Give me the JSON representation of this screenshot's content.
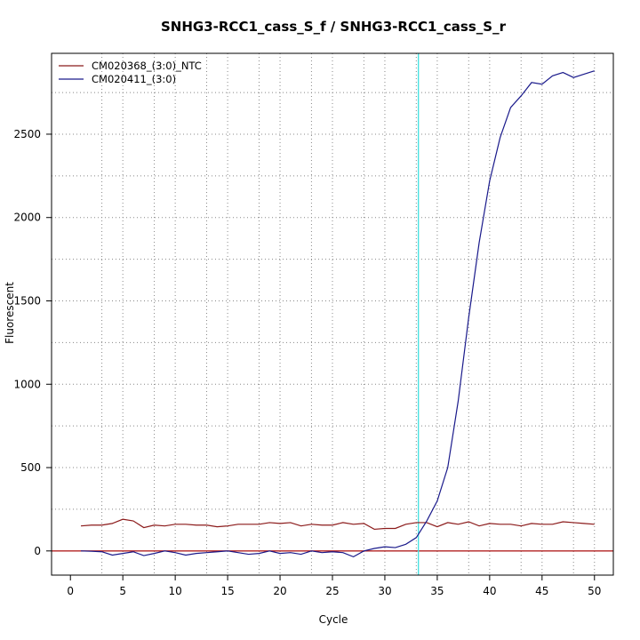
{
  "chart_data": {
    "type": "line",
    "title": "SNHG3-RCC1_cass_S_f / SNHG3-RCC1_cass_S_r",
    "xlabel": "Cycle",
    "ylabel": "Fluorescent",
    "xlim": [
      -1.8,
      51.8
    ],
    "ylim": [
      -145,
      2985
    ],
    "x_ticks": [
      0,
      5,
      10,
      15,
      20,
      25,
      30,
      35,
      40,
      45,
      50
    ],
    "y_ticks": [
      0,
      500,
      1000,
      1500,
      2000,
      2500
    ],
    "grid": "dotted",
    "legend_position": "top-left",
    "threshold_cycle": 33.2,
    "baseline": 0,
    "colors": {
      "series_ntc": "#8b1a1a",
      "series_sample": "#1a1a8b",
      "threshold_line": "#40e0e0",
      "baseline": "#b22222",
      "grid": "#888888"
    },
    "x": [
      1,
      2,
      3,
      4,
      5,
      6,
      7,
      8,
      9,
      10,
      11,
      12,
      13,
      14,
      15,
      16,
      17,
      18,
      19,
      20,
      21,
      22,
      23,
      24,
      25,
      26,
      27,
      28,
      29,
      30,
      31,
      32,
      33,
      34,
      35,
      36,
      37,
      38,
      39,
      40,
      41,
      42,
      43,
      44,
      45,
      46,
      47,
      48,
      49,
      50
    ],
    "series": [
      {
        "name": "CM020368_(3:0)_NTC",
        "values": [
          150,
          155,
          155,
          165,
          190,
          180,
          140,
          155,
          150,
          160,
          160,
          155,
          155,
          145,
          150,
          160,
          160,
          160,
          170,
          165,
          170,
          150,
          160,
          155,
          155,
          170,
          160,
          165,
          130,
          135,
          135,
          160,
          170,
          170,
          145,
          170,
          160,
          175,
          150,
          165,
          160,
          160,
          150,
          165,
          160,
          160,
          175,
          170,
          165,
          160
        ]
      },
      {
        "name": "CM020411_(3:0)",
        "values": [
          0,
          -2,
          -5,
          -25,
          -15,
          -5,
          -28,
          -15,
          0,
          -10,
          -25,
          -15,
          -10,
          -5,
          0,
          -10,
          -20,
          -15,
          0,
          -15,
          -10,
          -20,
          0,
          -10,
          -5,
          -10,
          -35,
          0,
          15,
          25,
          20,
          40,
          80,
          180,
          300,
          500,
          900,
          1400,
          1850,
          2220,
          2480,
          2660,
          2730,
          2810,
          2800,
          2850,
          2870,
          2840,
          2860,
          2880
        ]
      }
    ]
  }
}
